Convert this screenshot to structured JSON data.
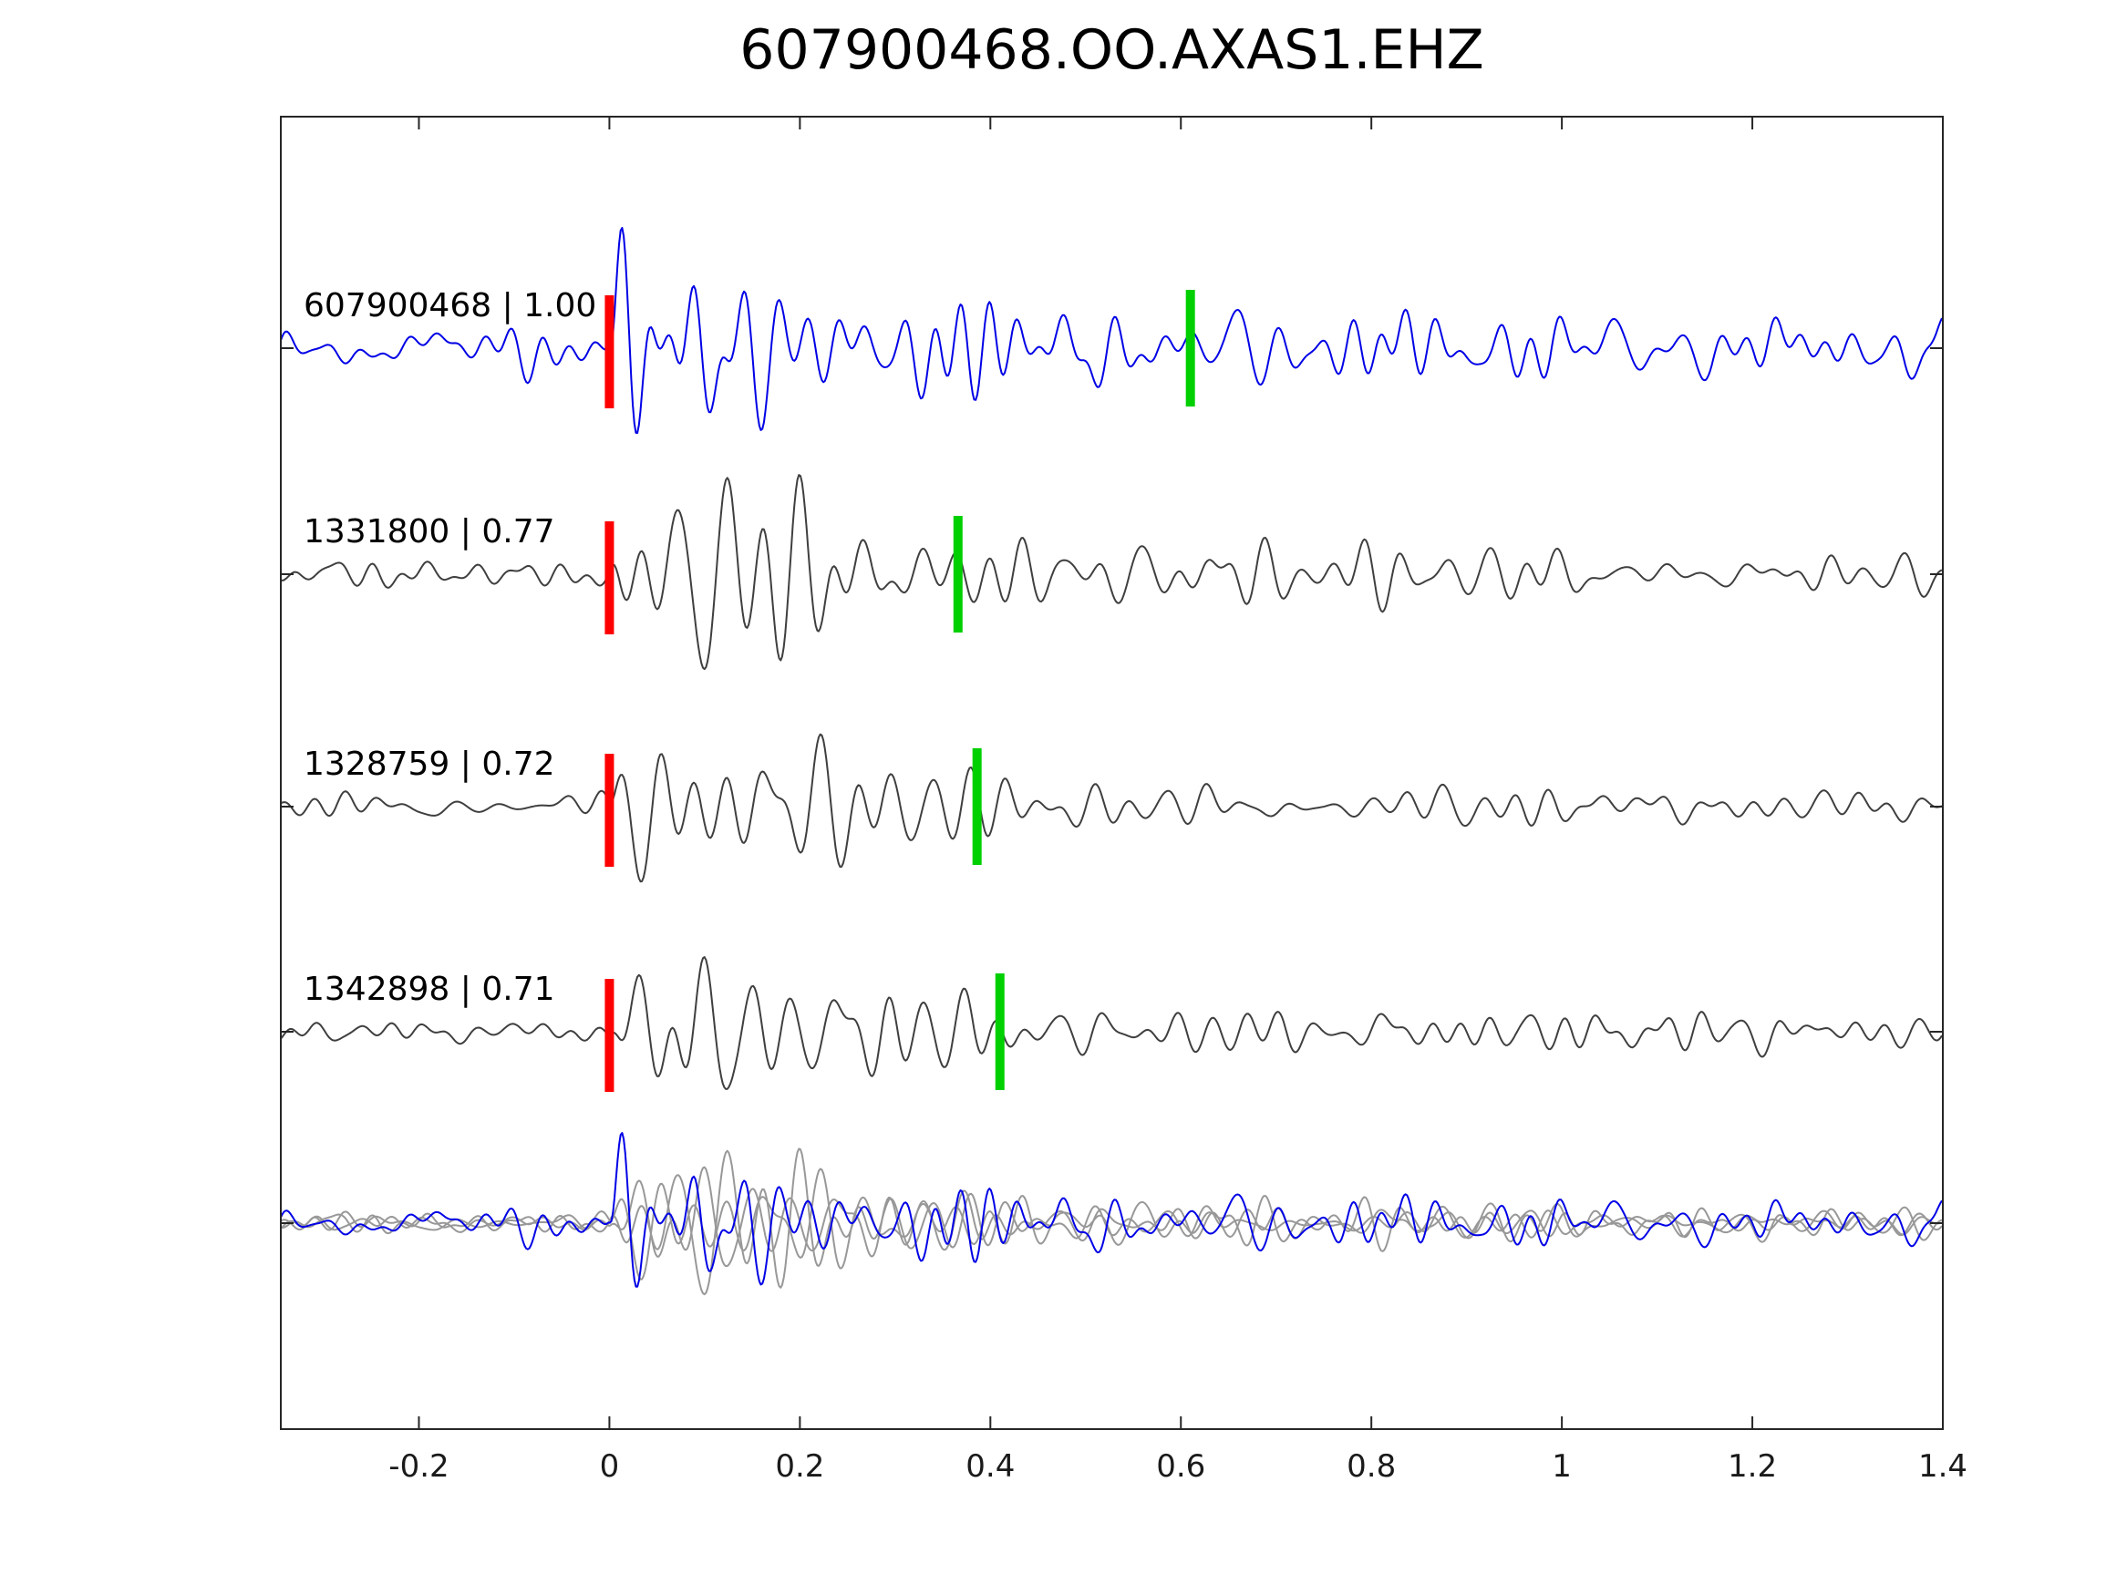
{
  "chart_data": {
    "type": "line",
    "title": "607900468.OO.AXAS1.EHZ",
    "xlabel": "",
    "ylabel": "",
    "xlim": [
      -0.345,
      1.4
    ],
    "x_ticks": [
      -0.2,
      0,
      0.2,
      0.4,
      0.6,
      0.8,
      1,
      1.2,
      1.4
    ],
    "x_tick_labels": [
      "-0.2",
      "0",
      "0.2",
      "0.4",
      "0.6",
      "0.8",
      "1",
      "1.2",
      "1.4"
    ],
    "grid": false,
    "legend": "none",
    "colors": {
      "reference_trace": "#0000e6",
      "match_trace": "#3f3f3f",
      "overlay_gray": "#989898",
      "pick_red": "#ff0000",
      "pick_green": "#00cf00",
      "axis": "#262626"
    },
    "traces": [
      {
        "id": "607900468",
        "label": "607900468 | 1.00",
        "correlation": 1.0,
        "color": "#0000e6",
        "row": 0,
        "pick_red_x": 0.0,
        "pick_green_x": 0.61,
        "seed": 7,
        "amp": 120,
        "noise_amp": 22,
        "freq": 30,
        "rise": 0.012,
        "decay": 5.5,
        "coda": 0.18
      },
      {
        "id": "1331800",
        "label": "1331800 | 0.77",
        "correlation": 0.77,
        "color": "#3f3f3f",
        "row": 1,
        "pick_red_x": 0.0,
        "pick_green_x": 0.366,
        "seed": 13,
        "amp": 125,
        "noise_amp": 12,
        "freq": 24,
        "rise": 0.014,
        "decay": 3.8,
        "coda": 0.12
      },
      {
        "id": "1328759",
        "label": "1328759 | 0.72",
        "correlation": 0.72,
        "color": "#3f3f3f",
        "row": 2,
        "pick_red_x": 0.0,
        "pick_green_x": 0.386,
        "seed": 21,
        "amp": 110,
        "noise_amp": 11,
        "freq": 24,
        "rise": 0.014,
        "decay": 4.5,
        "coda": 0.1
      },
      {
        "id": "1342898",
        "label": "1342898 | 0.71",
        "correlation": 0.71,
        "color": "#3f3f3f",
        "row": 3,
        "pick_red_x": 0.0,
        "pick_green_x": 0.41,
        "seed": 29,
        "amp": 105,
        "noise_amp": 11,
        "freq": 24,
        "rise": 0.014,
        "decay": 4.2,
        "coda": 0.1
      }
    ],
    "overlay": {
      "row": 4,
      "members": [
        1,
        2,
        3,
        0
      ],
      "scale": 0.75,
      "gray": "#989898"
    }
  }
}
